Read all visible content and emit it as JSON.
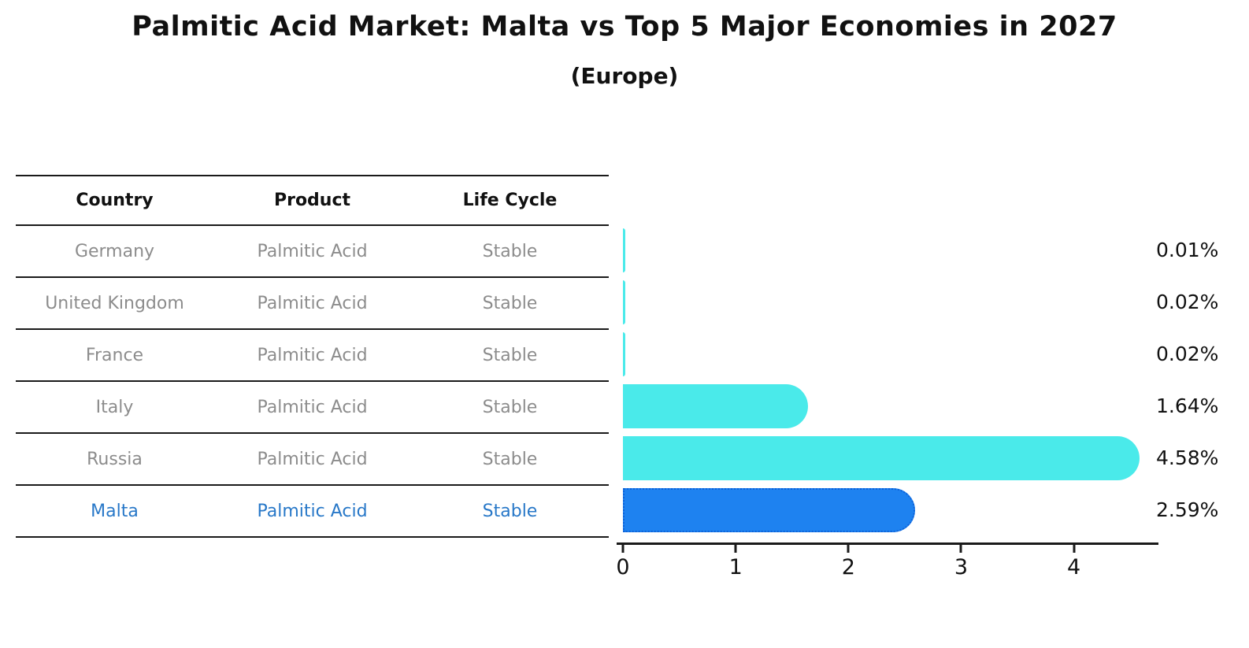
{
  "chart_data": {
    "type": "bar",
    "orientation": "horizontal",
    "title": "Palmitic Acid Market: Malta vs Top 5 Major Economies in 2027",
    "subtitle": "(Europe)",
    "categories": [
      "Germany",
      "United Kingdom",
      "France",
      "Italy",
      "Russia",
      "Malta"
    ],
    "values": [
      0.01,
      0.02,
      0.02,
      1.64,
      4.58,
      2.59
    ],
    "value_labels": [
      "0.01%",
      "0.02%",
      "0.02%",
      "1.64%",
      "4.58%",
      "2.59%"
    ],
    "xlabel": "",
    "ylabel": "",
    "xlim": [
      0,
      4.75
    ],
    "xticks": [
      0,
      1,
      2,
      3,
      4
    ],
    "grid": false,
    "legend": false,
    "bar_colors": [
      "#4aeaea",
      "#4aeaea",
      "#4aeaea",
      "#4aeaea",
      "#4aeaea",
      "#1e82f0"
    ],
    "highlight_index": 5,
    "highlight_border_color": "#0e62d8"
  },
  "table": {
    "headers": [
      "Country",
      "Product",
      "Life Cycle"
    ],
    "rows": [
      {
        "country": "Germany",
        "product": "Palmitic Acid",
        "life_cycle": "Stable"
      },
      {
        "country": "United Kingdom",
        "product": "Palmitic Acid",
        "life_cycle": "Stable"
      },
      {
        "country": "France",
        "product": "Palmitic Acid",
        "life_cycle": "Stable"
      },
      {
        "country": "Italy",
        "product": "Palmitic Acid",
        "life_cycle": "Stable"
      },
      {
        "country": "Russia",
        "product": "Palmitic Acid",
        "life_cycle": "Stable"
      },
      {
        "country": "Malta",
        "product": "Palmitic Acid",
        "life_cycle": "Stable"
      }
    ],
    "highlight_row": 5,
    "highlight_color": "#2878c8",
    "body_text_color": "#8c8c8c"
  }
}
